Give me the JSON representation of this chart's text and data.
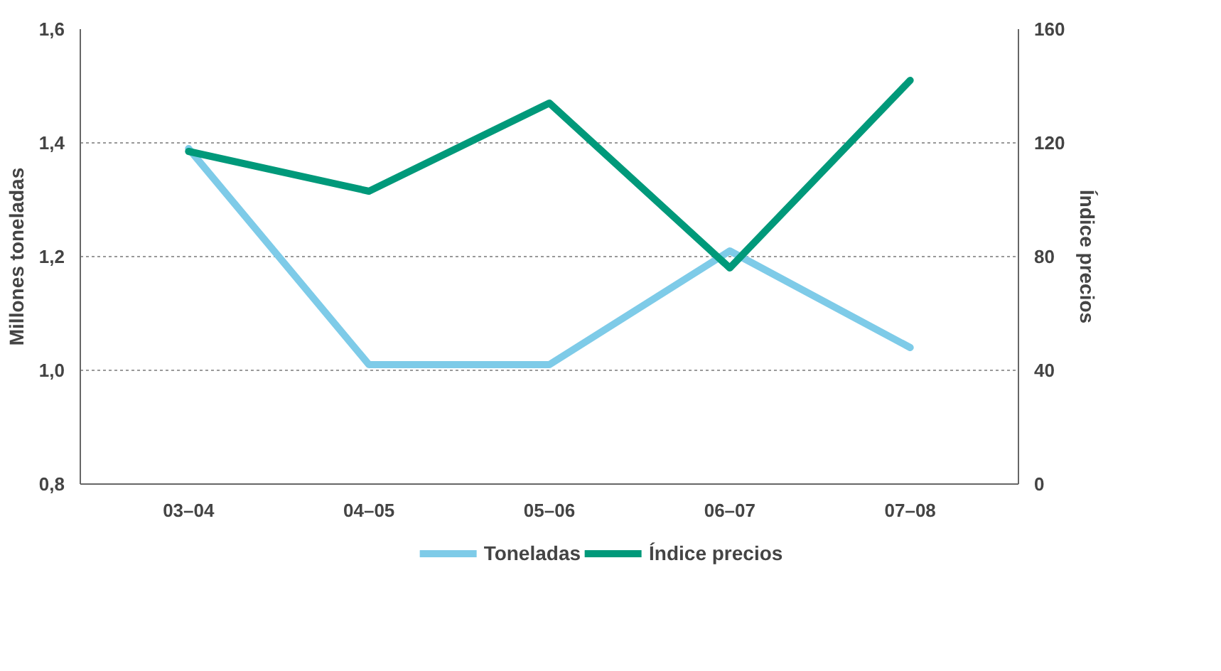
{
  "chart_data": {
    "type": "line",
    "ylabel": "Millones toneladas",
    "y2label": "Índice precios",
    "categories": [
      "03–04",
      "04–05",
      "05–06",
      "06–07",
      "07–08"
    ],
    "series": [
      {
        "name": "Toneladas",
        "color": "#7ecbe8",
        "values": [
          1.39,
          1.01,
          1.01,
          1.21,
          1.04
        ]
      },
      {
        "name": "Índice precios",
        "color": "#00997a",
        "axis": "y2",
        "values": [
          117,
          103,
          134,
          76,
          142
        ]
      }
    ],
    "ylim": [
      0.8,
      1.6
    ],
    "yticks": [
      {
        "value": 0.8,
        "label": "0,8"
      },
      {
        "value": 1.0,
        "label": "1,0"
      },
      {
        "value": 1.2,
        "label": "1,2"
      },
      {
        "value": 1.4,
        "label": "1,4"
      },
      {
        "value": 1.6,
        "label": "1,6"
      }
    ],
    "y2lim": [
      0,
      160
    ],
    "y2ticks": [
      0,
      40,
      80,
      120,
      160
    ],
    "grid": "y",
    "legend": "bottom",
    "line_style": "solid",
    "marker": "none"
  }
}
